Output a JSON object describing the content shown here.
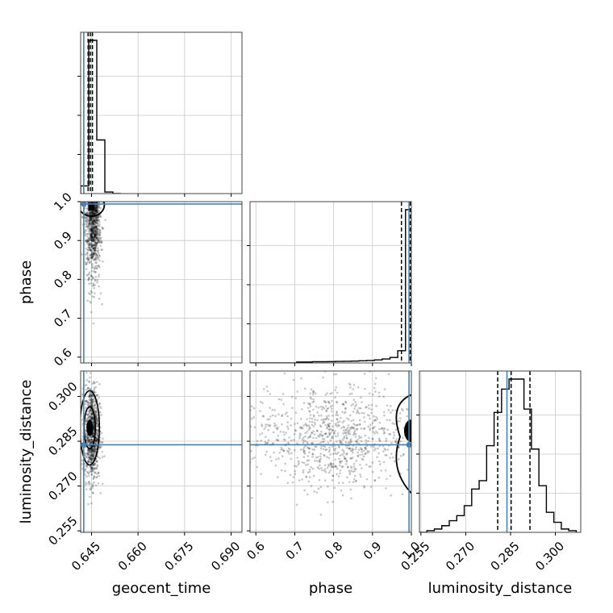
{
  "chart_data": {
    "type": "corner",
    "title": "",
    "parameters": [
      "geocent_time",
      "phase",
      "luminosity_distance"
    ],
    "truths": {
      "geocent_time": 0.6425,
      "phase": 0.994,
      "luminosity_distance": 0.2838
    },
    "truth_color": "#4682b4",
    "ranges": {
      "geocent_time": [
        0.6415,
        0.6935
      ],
      "phase": [
        0.585,
        1.0
      ],
      "luminosity_distance": [
        0.2545,
        0.3085
      ]
    },
    "ticks": {
      "geocent_time": {
        "values": [
          0.645,
          0.66,
          0.675,
          0.69
        ],
        "labels": [
          "0.645",
          "0.660",
          "0.675",
          "0.690"
        ]
      },
      "phase": {
        "values": [
          0.6,
          0.7,
          0.8,
          0.9,
          1.0
        ],
        "labels": [
          "0.6",
          "0.7",
          "0.8",
          "0.9",
          "1.0"
        ]
      },
      "luminosity_distance": {
        "values": [
          0.255,
          0.27,
          0.285,
          0.3
        ],
        "labels": [
          "0.255",
          "0.270",
          "0.285",
          "0.300"
        ]
      }
    },
    "quantiles": {
      "geocent_time": [
        0.6439,
        0.6446,
        0.6453
      ],
      "phase": [
        0.9745,
        0.997
      ],
      "luminosity_distance": [
        0.2807,
        0.2852,
        0.2915
      ]
    },
    "histograms": {
      "geocent_time": {
        "edges": [
          0.6415,
          0.6441,
          0.6467,
          0.6493,
          0.6519,
          0.6545
        ],
        "counts": [
          0.05,
          1.0,
          0.35,
          0.01,
          0.0
        ]
      },
      "phase": {
        "edges": [
          0.585,
          0.605,
          0.625,
          0.645,
          0.665,
          0.685,
          0.705,
          0.725,
          0.745,
          0.765,
          0.785,
          0.805,
          0.825,
          0.845,
          0.865,
          0.885,
          0.905,
          0.925,
          0.945,
          0.965,
          0.985,
          1.0
        ],
        "counts": [
          0.0,
          0.0,
          0.0,
          0.0,
          0.0,
          0.0,
          0.006,
          0.006,
          0.008,
          0.008,
          0.009,
          0.01,
          0.011,
          0.012,
          0.014,
          0.016,
          0.02,
          0.026,
          0.036,
          0.08,
          1.0
        ]
      },
      "luminosity_distance": {
        "edges": [
          0.2545,
          0.257,
          0.2595,
          0.262,
          0.2645,
          0.267,
          0.2695,
          0.272,
          0.2745,
          0.277,
          0.2795,
          0.282,
          0.2845,
          0.287,
          0.2895,
          0.292,
          0.2945,
          0.297,
          0.2995,
          0.302,
          0.3045,
          0.307
        ],
        "counts": [
          0.0,
          0.01,
          0.02,
          0.04,
          0.07,
          0.1,
          0.16,
          0.26,
          0.31,
          0.52,
          0.72,
          0.86,
          0.92,
          0.92,
          0.74,
          0.5,
          0.28,
          0.12,
          0.06,
          0.02,
          0.01
        ]
      }
    },
    "scatter": {
      "phase_vs_geocent_time": {
        "center": [
          0.6455,
          0.95
        ],
        "spread": [
          0.0012,
          0.06
        ],
        "n": 900
      },
      "luminosity_distance_vs_geocent_time": {
        "center": [
          0.6452,
          0.288
        ],
        "spread": [
          0.0012,
          0.008
        ],
        "n": 900
      },
      "luminosity_distance_vs_phase": {
        "center": [
          0.84,
          0.2865
        ],
        "spread": [
          0.1,
          0.0085
        ],
        "n": 900
      }
    },
    "grid": true
  }
}
